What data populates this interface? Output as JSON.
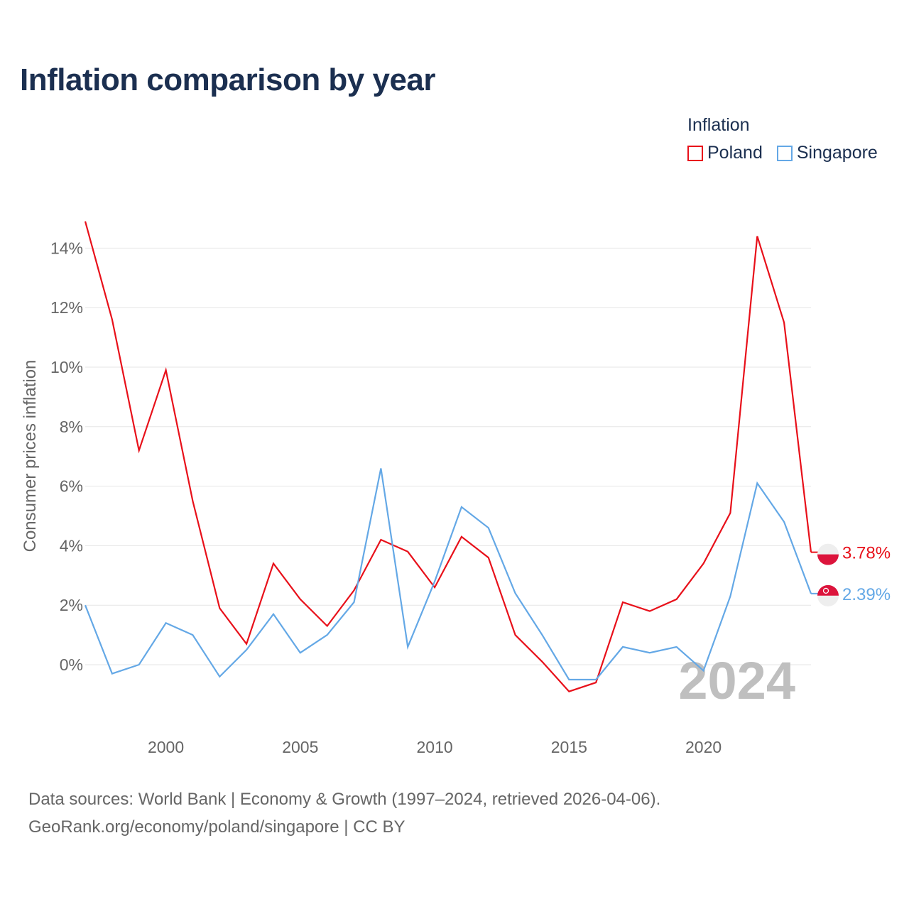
{
  "title": "Inflation comparison by year",
  "legend": {
    "title": "Inflation",
    "items": [
      {
        "name": "Poland",
        "color": "#e8101a"
      },
      {
        "name": "Singapore",
        "color": "#64a8e6"
      }
    ]
  },
  "source": {
    "line1": "Data sources: World Bank | Economy & Growth (1997–2024, retrieved 2026-04-06).",
    "line2": "GeoRank.org/economy/poland/singapore | CC BY"
  },
  "chart_data": {
    "type": "line",
    "title": "Inflation comparison by year",
    "xlabel": "",
    "ylabel": "Consumer prices inflation",
    "year_watermark": "2024",
    "x": [
      1997,
      1998,
      1999,
      2000,
      2001,
      2002,
      2003,
      2004,
      2005,
      2006,
      2007,
      2008,
      2009,
      2010,
      2011,
      2012,
      2013,
      2014,
      2015,
      2016,
      2017,
      2018,
      2019,
      2020,
      2021,
      2022,
      2023,
      2024
    ],
    "xlim": [
      1997,
      2024
    ],
    "ylim": [
      -2,
      15
    ],
    "xticks": [
      2000,
      2005,
      2010,
      2015,
      2020
    ],
    "yticks": [
      0,
      2,
      4,
      6,
      8,
      10,
      12,
      14
    ],
    "ytick_labels": [
      "0%",
      "2%",
      "4%",
      "6%",
      "8%",
      "10%",
      "12%",
      "14%"
    ],
    "series": [
      {
        "name": "Poland",
        "color": "#e8101a",
        "end_label": "3.78%",
        "values": [
          14.9,
          11.6,
          7.2,
          9.9,
          5.5,
          1.9,
          0.7,
          3.4,
          2.2,
          1.3,
          2.5,
          4.2,
          3.8,
          2.6,
          4.3,
          3.6,
          1.0,
          0.1,
          -0.9,
          -0.6,
          2.1,
          1.8,
          2.2,
          3.4,
          5.1,
          14.4,
          11.5,
          3.78
        ]
      },
      {
        "name": "Singapore",
        "color": "#64a8e6",
        "end_label": "2.39%",
        "values": [
          2.0,
          -0.3,
          0.0,
          1.4,
          1.0,
          -0.4,
          0.5,
          1.7,
          0.4,
          1.0,
          2.1,
          6.6,
          0.6,
          2.8,
          5.3,
          4.6,
          2.4,
          1.0,
          -0.5,
          -0.5,
          0.6,
          0.4,
          0.6,
          -0.2,
          2.3,
          6.1,
          4.8,
          2.39
        ]
      }
    ]
  }
}
